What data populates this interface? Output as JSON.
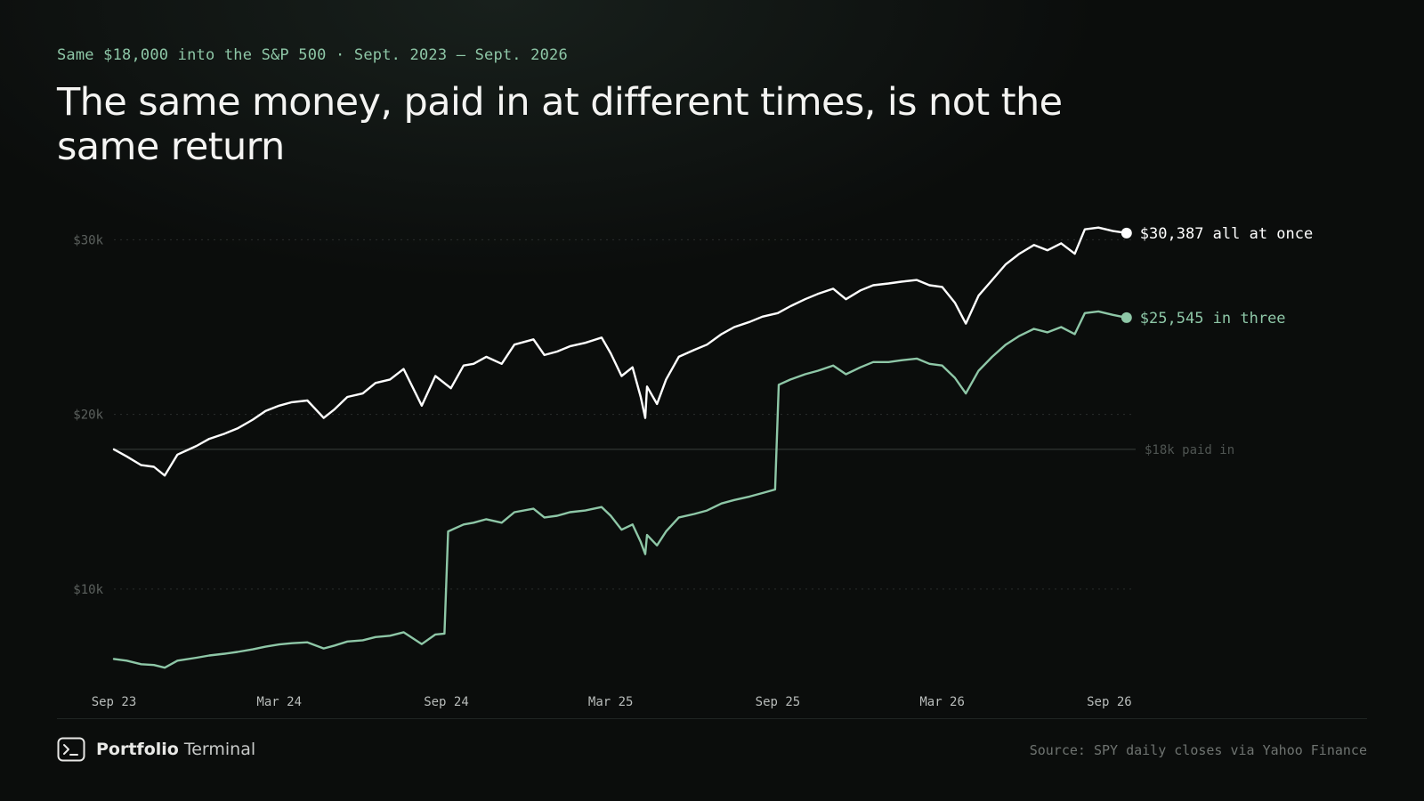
{
  "header": {
    "kicker": "Same $18,000 into the S&P 500 · Sept. 2023 – Sept. 2026",
    "title": "The same money, paid in at different times, is not the same return"
  },
  "footer": {
    "brand_bold": "Portfolio",
    "brand_regular": "Terminal",
    "brand_icon": "terminal-prompt-icon",
    "source": "Source: SPY daily closes via Yahoo Finance"
  },
  "colors": {
    "background": "#0b0d0c",
    "lump_sum": "#ffffff",
    "three_payments": "#8ec7a7",
    "kicker": "#8ec7a7",
    "gridline": "#2a2e2c",
    "reference_line": "#3b403d"
  },
  "chart_data": {
    "type": "line",
    "x_type": "date",
    "xlim": [
      "2023-09-01",
      "2026-09-30"
    ],
    "ylim": [
      5000,
      31500
    ],
    "y_ticks": [
      {
        "value": 10000,
        "label": "$10k"
      },
      {
        "value": 20000,
        "label": "$20k"
      },
      {
        "value": 30000,
        "label": "$30k"
      }
    ],
    "x_ticks": [
      {
        "value": "2023-09-01",
        "label": "Sep 23"
      },
      {
        "value": "2024-03-01",
        "label": "Mar 24"
      },
      {
        "value": "2024-09-01",
        "label": "Sep 24"
      },
      {
        "value": "2025-03-01",
        "label": "Mar 25"
      },
      {
        "value": "2025-09-01",
        "label": "Sep 25"
      },
      {
        "value": "2026-03-01",
        "label": "Mar 26"
      },
      {
        "value": "2026-09-01",
        "label": "Sep 26"
      }
    ],
    "grid": "horizontal dotted",
    "reference_line": {
      "value": 18000,
      "label": "$18k paid in"
    },
    "series": [
      {
        "name": "all at once",
        "end_label": "$30,387 all at once",
        "color": "#ffffff",
        "points": [
          [
            "2023-09-01",
            18000
          ],
          [
            "2023-09-15",
            17600
          ],
          [
            "2023-10-01",
            17100
          ],
          [
            "2023-10-15",
            17000
          ],
          [
            "2023-10-27",
            16500
          ],
          [
            "2023-11-10",
            17700
          ],
          [
            "2023-12-01",
            18200
          ],
          [
            "2023-12-15",
            18600
          ],
          [
            "2024-01-01",
            18900
          ],
          [
            "2024-01-15",
            19200
          ],
          [
            "2024-02-01",
            19700
          ],
          [
            "2024-02-15",
            20200
          ],
          [
            "2024-03-01",
            20500
          ],
          [
            "2024-03-15",
            20700
          ],
          [
            "2024-04-01",
            20800
          ],
          [
            "2024-04-19",
            19800
          ],
          [
            "2024-05-01",
            20300
          ],
          [
            "2024-05-15",
            21000
          ],
          [
            "2024-06-01",
            21200
          ],
          [
            "2024-06-15",
            21800
          ],
          [
            "2024-07-01",
            22000
          ],
          [
            "2024-07-16",
            22600
          ],
          [
            "2024-08-05",
            20500
          ],
          [
            "2024-08-20",
            22200
          ],
          [
            "2024-09-06",
            21500
          ],
          [
            "2024-09-20",
            22800
          ],
          [
            "2024-10-01",
            22900
          ],
          [
            "2024-10-15",
            23300
          ],
          [
            "2024-11-01",
            22900
          ],
          [
            "2024-11-15",
            24000
          ],
          [
            "2024-12-06",
            24300
          ],
          [
            "2024-12-18",
            23400
          ],
          [
            "2025-01-01",
            23600
          ],
          [
            "2025-01-15",
            23900
          ],
          [
            "2025-02-01",
            24100
          ],
          [
            "2025-02-19",
            24400
          ],
          [
            "2025-03-01",
            23500
          ],
          [
            "2025-03-13",
            22200
          ],
          [
            "2025-03-25",
            22700
          ],
          [
            "2025-04-03",
            21000
          ],
          [
            "2025-04-08",
            19800
          ],
          [
            "2025-04-10",
            21600
          ],
          [
            "2025-04-21",
            20600
          ],
          [
            "2025-05-01",
            22000
          ],
          [
            "2025-05-15",
            23300
          ],
          [
            "2025-06-01",
            23700
          ],
          [
            "2025-06-15",
            24000
          ],
          [
            "2025-07-01",
            24600
          ],
          [
            "2025-07-15",
            25000
          ],
          [
            "2025-08-01",
            25300
          ],
          [
            "2025-08-15",
            25600
          ],
          [
            "2025-09-01",
            25800
          ],
          [
            "2025-09-15",
            26200
          ],
          [
            "2025-10-01",
            26600
          ],
          [
            "2025-10-15",
            26900
          ],
          [
            "2025-11-01",
            27200
          ],
          [
            "2025-11-15",
            26600
          ],
          [
            "2025-12-01",
            27100
          ],
          [
            "2025-12-15",
            27400
          ],
          [
            "2026-01-01",
            27500
          ],
          [
            "2026-01-15",
            27600
          ],
          [
            "2026-02-01",
            27700
          ],
          [
            "2026-02-15",
            27400
          ],
          [
            "2026-03-01",
            27300
          ],
          [
            "2026-03-15",
            26400
          ],
          [
            "2026-03-27",
            25200
          ],
          [
            "2026-04-10",
            26800
          ],
          [
            "2026-04-25",
            27700
          ],
          [
            "2026-05-10",
            28600
          ],
          [
            "2026-05-25",
            29200
          ],
          [
            "2026-06-10",
            29700
          ],
          [
            "2026-06-25",
            29400
          ],
          [
            "2026-07-10",
            29800
          ],
          [
            "2026-07-25",
            29200
          ],
          [
            "2026-08-05",
            30600
          ],
          [
            "2026-08-20",
            30700
          ],
          [
            "2026-09-05",
            30500
          ],
          [
            "2026-09-20",
            30387
          ]
        ]
      },
      {
        "name": "in three",
        "end_label": "$25,545 in three",
        "color": "#8ec7a7",
        "points": [
          [
            "2023-09-01",
            6000
          ],
          [
            "2023-09-15",
            5900
          ],
          [
            "2023-10-01",
            5700
          ],
          [
            "2023-10-15",
            5650
          ],
          [
            "2023-10-27",
            5500
          ],
          [
            "2023-11-10",
            5900
          ],
          [
            "2023-12-01",
            6070
          ],
          [
            "2023-12-15",
            6200
          ],
          [
            "2024-01-01",
            6300
          ],
          [
            "2024-01-15",
            6400
          ],
          [
            "2024-02-01",
            6550
          ],
          [
            "2024-02-15",
            6700
          ],
          [
            "2024-03-01",
            6830
          ],
          [
            "2024-03-15",
            6900
          ],
          [
            "2024-04-01",
            6950
          ],
          [
            "2024-04-19",
            6600
          ],
          [
            "2024-05-01",
            6770
          ],
          [
            "2024-05-15",
            7000
          ],
          [
            "2024-06-01",
            7070
          ],
          [
            "2024-06-15",
            7250
          ],
          [
            "2024-07-01",
            7330
          ],
          [
            "2024-07-16",
            7530
          ],
          [
            "2024-08-05",
            6850
          ],
          [
            "2024-08-20",
            7400
          ],
          [
            "2024-08-30",
            7450
          ],
          [
            "2024-09-03",
            13300
          ],
          [
            "2024-09-20",
            13700
          ],
          [
            "2024-10-01",
            13800
          ],
          [
            "2024-10-15",
            14000
          ],
          [
            "2024-11-01",
            13800
          ],
          [
            "2024-11-15",
            14400
          ],
          [
            "2024-12-06",
            14600
          ],
          [
            "2024-12-18",
            14100
          ],
          [
            "2025-01-01",
            14200
          ],
          [
            "2025-01-15",
            14400
          ],
          [
            "2025-02-01",
            14500
          ],
          [
            "2025-02-19",
            14700
          ],
          [
            "2025-03-01",
            14200
          ],
          [
            "2025-03-13",
            13400
          ],
          [
            "2025-03-25",
            13700
          ],
          [
            "2025-04-03",
            12700
          ],
          [
            "2025-04-08",
            12000
          ],
          [
            "2025-04-10",
            13100
          ],
          [
            "2025-04-21",
            12500
          ],
          [
            "2025-05-01",
            13300
          ],
          [
            "2025-05-15",
            14100
          ],
          [
            "2025-06-01",
            14300
          ],
          [
            "2025-06-15",
            14500
          ],
          [
            "2025-07-01",
            14900
          ],
          [
            "2025-07-15",
            15100
          ],
          [
            "2025-08-01",
            15300
          ],
          [
            "2025-08-15",
            15500
          ],
          [
            "2025-08-29",
            15700
          ],
          [
            "2025-09-02",
            21700
          ],
          [
            "2025-09-15",
            22000
          ],
          [
            "2025-10-01",
            22300
          ],
          [
            "2025-10-15",
            22500
          ],
          [
            "2025-11-01",
            22800
          ],
          [
            "2025-11-15",
            22300
          ],
          [
            "2025-12-01",
            22700
          ],
          [
            "2025-12-15",
            23000
          ],
          [
            "2026-01-01",
            23000
          ],
          [
            "2026-01-15",
            23100
          ],
          [
            "2026-02-01",
            23200
          ],
          [
            "2026-02-15",
            22900
          ],
          [
            "2026-03-01",
            22800
          ],
          [
            "2026-03-15",
            22100
          ],
          [
            "2026-03-27",
            21200
          ],
          [
            "2026-04-10",
            22500
          ],
          [
            "2026-04-25",
            23300
          ],
          [
            "2026-05-10",
            24000
          ],
          [
            "2026-05-25",
            24500
          ],
          [
            "2026-06-10",
            24900
          ],
          [
            "2026-06-25",
            24700
          ],
          [
            "2026-07-10",
            25000
          ],
          [
            "2026-07-25",
            24600
          ],
          [
            "2026-08-05",
            25800
          ],
          [
            "2026-08-20",
            25900
          ],
          [
            "2026-09-05",
            25700
          ],
          [
            "2026-09-20",
            25545
          ]
        ]
      }
    ]
  }
}
